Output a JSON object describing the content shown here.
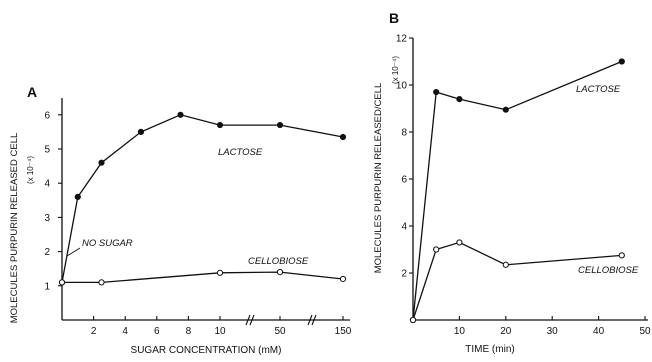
{
  "chart_data": [
    {
      "type": "line",
      "panel_label": "A",
      "xlabel": "SUGAR CONCENTRATION (mM)",
      "ylabel": "MOLECULES PURPURIN RELEASED  CELL",
      "ylabel_unit": "(x 10⁻⁴)",
      "x_ticks": [
        "2",
        "4",
        "6",
        "8",
        "10",
        "50",
        "150"
      ],
      "y_ticks": [
        "1",
        "2",
        "3",
        "4",
        "5",
        "6"
      ],
      "ylim": [
        0,
        6.8
      ],
      "x_axis_breaks": true,
      "series": [
        {
          "name": "LACTOSE",
          "marker": "filled",
          "points": [
            {
              "x": 0,
              "y": 1.1
            },
            {
              "x": 1,
              "y": 3.6
            },
            {
              "x": 2.5,
              "y": 4.6
            },
            {
              "x": 5,
              "y": 5.5
            },
            {
              "x": 7.5,
              "y": 6.0
            },
            {
              "x": 10,
              "y": 5.7
            },
            {
              "x": 50,
              "y": 5.7
            },
            {
              "x": 150,
              "y": 5.35
            }
          ]
        },
        {
          "name": "CELLOBIOSE",
          "marker": "open",
          "points": [
            {
              "x": 0,
              "y": 1.1
            },
            {
              "x": 2.5,
              "y": 1.1
            },
            {
              "x": 10,
              "y": 1.38
            },
            {
              "x": 50,
              "y": 1.4
            },
            {
              "x": 150,
              "y": 1.2
            }
          ]
        }
      ],
      "annotations": [
        {
          "text": "NO SUGAR",
          "x": 0,
          "y": 1.1
        }
      ]
    },
    {
      "type": "line",
      "panel_label": "B",
      "xlabel": "TIME (min)",
      "ylabel": "MOLECULES PURPURIN RELEASED/CELL",
      "ylabel_unit": "(x 10⁻⁴)",
      "x_ticks": [
        "10",
        "20",
        "30",
        "40",
        "50"
      ],
      "y_ticks": [
        "2",
        "4",
        "6",
        "8",
        "10",
        "12"
      ],
      "xlim": [
        0,
        50
      ],
      "ylim": [
        0,
        12
      ],
      "series": [
        {
          "name": "LACTOSE",
          "marker": "filled",
          "points": [
            {
              "x": 0,
              "y": 0
            },
            {
              "x": 5,
              "y": 9.7
            },
            {
              "x": 10,
              "y": 9.4
            },
            {
              "x": 20,
              "y": 8.95
            },
            {
              "x": 45,
              "y": 11.0
            }
          ]
        },
        {
          "name": "CELLOBIOSE",
          "marker": "open",
          "points": [
            {
              "x": 0,
              "y": 0
            },
            {
              "x": 5,
              "y": 3.0
            },
            {
              "x": 10,
              "y": 3.3
            },
            {
              "x": 20,
              "y": 2.35
            },
            {
              "x": 45,
              "y": 2.75
            }
          ]
        }
      ]
    }
  ]
}
